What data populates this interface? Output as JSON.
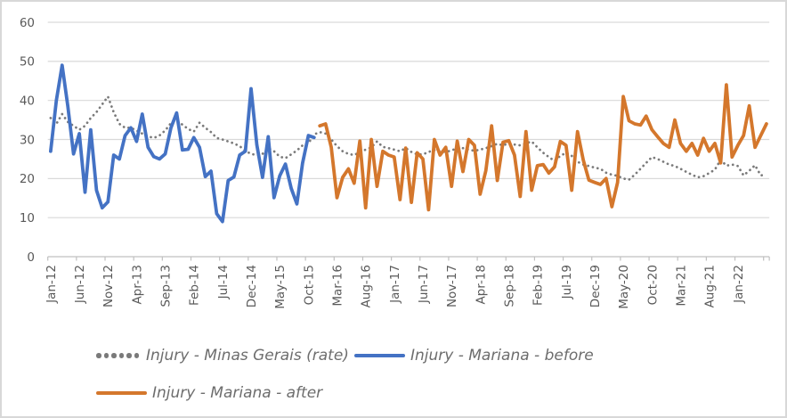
{
  "window": {
    "background": "#ffffff",
    "border_color": "#d8d8d8"
  },
  "chart_data": {
    "type": "line",
    "title": "",
    "xlabel": "",
    "ylabel": "",
    "grid": true,
    "legend_position": "bottom-left",
    "x_axis": {
      "n_points": 126,
      "first_month": "Jan-12",
      "last_month": "Jun-22",
      "tick_interval": 5,
      "tick_labels": [
        "Jan-12",
        "Jun-12",
        "Nov-12",
        "Apr-13",
        "Sep-13",
        "Feb-14",
        "Jul-14",
        "Dec-14",
        "May-15",
        "Oct-15",
        "Mar-16",
        "Aug-16",
        "Jan-17",
        "Jun-17",
        "Nov-17",
        "Apr-18",
        "Sep-18",
        "Feb-19",
        "Jul-19",
        "Dec-19",
        "May-20",
        "Oct-20",
        "Mar-21",
        "Aug-21",
        "Jan-22"
      ]
    },
    "y_axis": {
      "min": 0,
      "max": 60,
      "ticks": [
        0,
        10,
        20,
        30,
        40,
        50,
        60
      ]
    },
    "colors": {
      "grid": "#d9d9d9",
      "axis": "#c0c0c0",
      "tick_text": "#595959",
      "legend_text": "#6d6d6d"
    },
    "series": [
      {
        "name": "Injury - Minas Gerais (rate)",
        "style": "dotted",
        "color": "#7a7a7a",
        "start_index": 0,
        "values": [
          35.5,
          34,
          36.5,
          34.5,
          33.5,
          32.5,
          33.5,
          35.5,
          37,
          39,
          41,
          37,
          34,
          33,
          33,
          32.3,
          31.5,
          30.8,
          30.4,
          31,
          32.3,
          34.2,
          34.9,
          33.8,
          32.7,
          32,
          34.3,
          33,
          31.9,
          30.4,
          30,
          29.5,
          29,
          28.3,
          27.1,
          26.3,
          26,
          26.3,
          27.8,
          27,
          25.6,
          25.2,
          26.2,
          27.2,
          28.5,
          29,
          31.3,
          31.9,
          31.5,
          30,
          28.3,
          27,
          26.3,
          26,
          26.8,
          27.4,
          28,
          29.5,
          28.1,
          27.8,
          27.4,
          27,
          27.8,
          26.8,
          26.2,
          26.2,
          26.8,
          27.3,
          27,
          26.8,
          27.2,
          27.8,
          27.8,
          27.4,
          27.1,
          27.4,
          27.8,
          28.3,
          28.9,
          28.5,
          29,
          28.7,
          28.5,
          29,
          29.5,
          28,
          26.6,
          25.5,
          24.5,
          25.8,
          26.6,
          25.8,
          24.3,
          23.6,
          23.2,
          22.8,
          22.5,
          21.5,
          21,
          20.7,
          20,
          19.7,
          21,
          22.5,
          24,
          25.5,
          25,
          24.3,
          23.6,
          23.2,
          22.5,
          21.7,
          21,
          20.3,
          20.6,
          21.4,
          22.3,
          24.8,
          23.3,
          23.6,
          23.2,
          20.8,
          22,
          23.4,
          20.8,
          21
        ]
      },
      {
        "name": "Injury - Mariana - before",
        "style": "solid",
        "color": "#4472c4",
        "start_index": 0,
        "values": [
          27,
          40,
          49,
          38.5,
          26.3,
          31.5,
          16.5,
          32.5,
          17,
          12.5,
          14,
          26,
          25,
          31,
          33,
          29.5,
          36.5,
          28,
          25.6,
          25,
          26.3,
          33,
          36.8,
          27.3,
          27.5,
          30.5,
          28,
          20.5,
          21.9,
          11,
          9,
          19.5,
          20.4,
          26,
          27,
          43,
          28.6,
          20.3,
          30.7,
          15.1,
          20.7,
          23.7,
          17.5,
          13.5,
          24,
          31,
          30.5
        ]
      },
      {
        "name": "Injury - Mariana - after",
        "style": "solid",
        "color": "#d4772c",
        "start_index": 47,
        "values": [
          33.5,
          34,
          28,
          15.1,
          20.3,
          22.5,
          18.8,
          29.6,
          12.5,
          30,
          18,
          27,
          26,
          25.5,
          14.6,
          27.8,
          13.9,
          26.6,
          25,
          12,
          30,
          26,
          28,
          18,
          29.6,
          21.8,
          30,
          28.5,
          16,
          22,
          33.5,
          19.5,
          29.3,
          29.7,
          26,
          15.4,
          32,
          17,
          23.3,
          23.6,
          21.4,
          23,
          29.5,
          28.5,
          17,
          32,
          24.8,
          19.6,
          19,
          18.5,
          20,
          12.8,
          19,
          41,
          34.8,
          34,
          33.7,
          36,
          32.5,
          30.7,
          29,
          28,
          35,
          29,
          27,
          29,
          26,
          30.3,
          27,
          29,
          24,
          44,
          25.5,
          28.5,
          31,
          38.6,
          28,
          31,
          34
        ]
      }
    ]
  }
}
